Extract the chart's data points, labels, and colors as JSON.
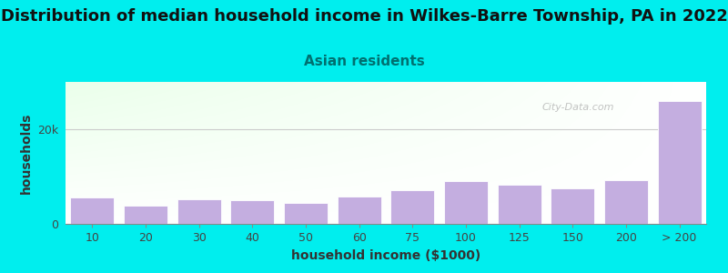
{
  "title": "Distribution of median household income in Wilkes-Barre Township, PA in 2022",
  "subtitle": "Asian residents",
  "xlabel": "household income ($1000)",
  "ylabel": "households",
  "background_outer": "#00EEEE",
  "bar_color": "#c4aee0",
  "bar_edge_color": "#ffffff",
  "categories": [
    "10",
    "20",
    "30",
    "40",
    "50",
    "60",
    "75",
    "100",
    "125",
    "150",
    "200",
    "> 200"
  ],
  "values": [
    5500,
    3800,
    5200,
    5000,
    4500,
    5800,
    7200,
    9000,
    8200,
    7500,
    9200,
    26000
  ],
  "yticks": [
    0,
    20000
  ],
  "ytick_labels": [
    "0",
    "20k"
  ],
  "ylim": [
    0,
    30000
  ],
  "title_fontsize": 13,
  "subtitle_fontsize": 11,
  "axis_label_fontsize": 10,
  "tick_fontsize": 9,
  "title_color": "#111111",
  "subtitle_color": "#007070",
  "watermark_text": "City-Data.com",
  "watermark_color": "#aaaaaa",
  "grid_color": "#cccccc"
}
